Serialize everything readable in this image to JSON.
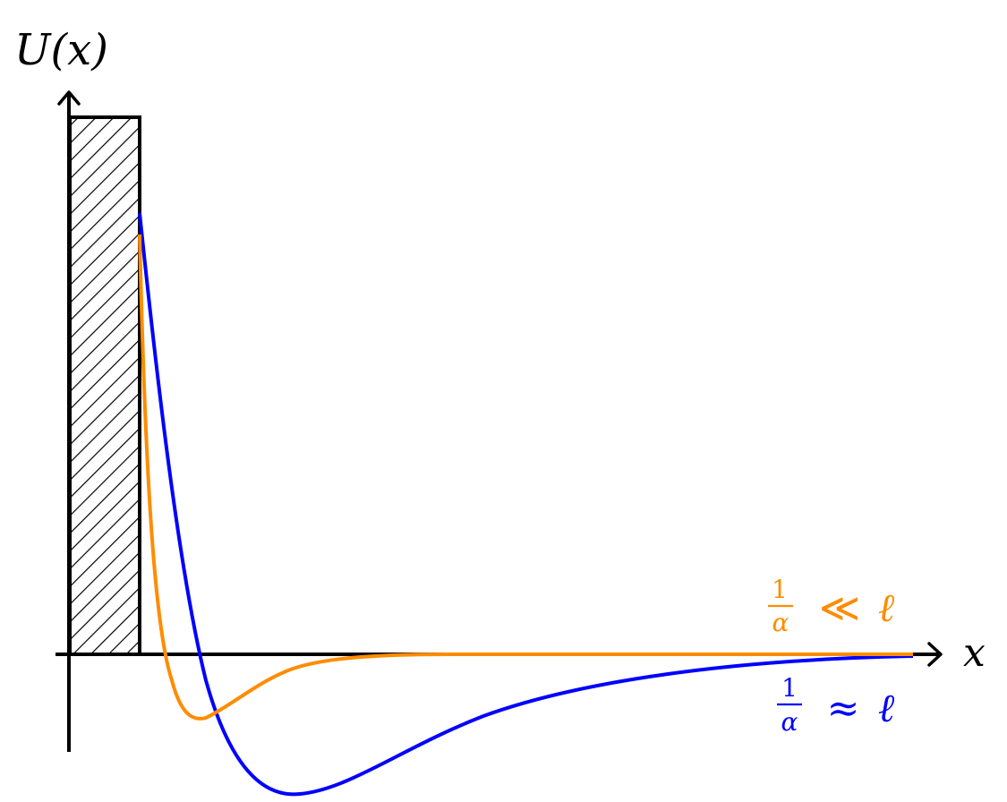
{
  "axes": {
    "y_label": "U(x)",
    "x_label": "x"
  },
  "curves": [
    {
      "name": "orange",
      "color": "#ff8c00",
      "label_numerator": "1",
      "label_denominator": "α",
      "label_relation": "≪",
      "label_rhs": "ℓ"
    },
    {
      "name": "blue",
      "color": "#0000ff",
      "label_numerator": "1",
      "label_denominator": "α",
      "label_relation": "≈",
      "label_rhs": "ℓ"
    }
  ],
  "colors": {
    "axis": "#000000",
    "wall_hatch": "#000000",
    "background": "#ffffff"
  }
}
